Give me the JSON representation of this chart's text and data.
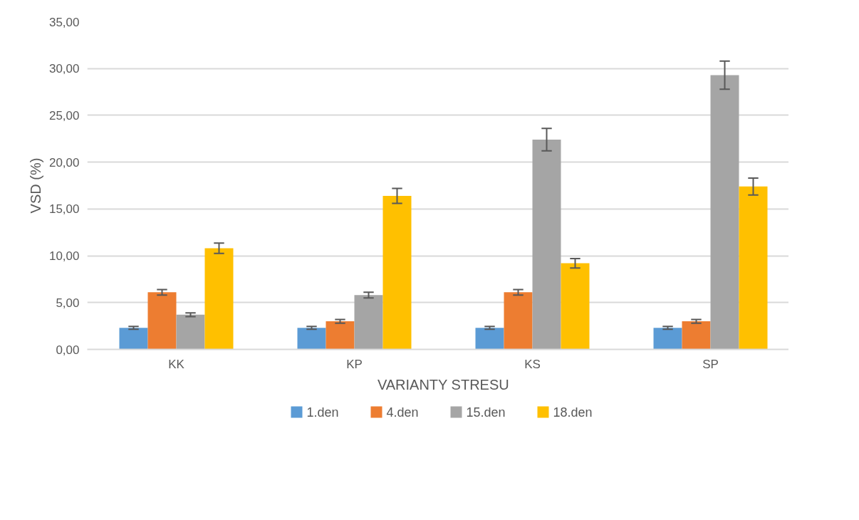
{
  "chart_data": {
    "type": "bar",
    "xlabel": "VARIANTY STRESU",
    "ylabel": "VSD (%)",
    "categories": [
      "KK",
      "KP",
      "KS",
      "SP"
    ],
    "series": [
      {
        "name": "1.den",
        "color": "#5b9bd5",
        "values": [
          2.3,
          2.3,
          2.3,
          2.3
        ],
        "errors": [
          0.15,
          0.15,
          0.15,
          0.15
        ]
      },
      {
        "name": "4.den",
        "color": "#ed7d31",
        "values": [
          6.1,
          3.0,
          6.1,
          3.0
        ],
        "errors": [
          0.3,
          0.2,
          0.3,
          0.2
        ]
      },
      {
        "name": "15.den",
        "color": "#a5a5a5",
        "values": [
          3.7,
          5.8,
          22.4,
          29.3
        ],
        "errors": [
          0.2,
          0.3,
          1.2,
          1.5
        ]
      },
      {
        "name": "18.den",
        "color": "#ffc000",
        "values": [
          10.8,
          16.4,
          9.2,
          17.4
        ],
        "errors": [
          0.55,
          0.8,
          0.5,
          0.9
        ]
      }
    ],
    "ylim": [
      0,
      35
    ],
    "yticks": [
      {
        "value": 0,
        "label": "0,00"
      },
      {
        "value": 5,
        "label": "5,00"
      },
      {
        "value": 10,
        "label": "10,00"
      },
      {
        "value": 15,
        "label": "15,00"
      },
      {
        "value": 20,
        "label": "20,00"
      },
      {
        "value": 25,
        "label": "25,00"
      },
      {
        "value": 30,
        "label": "30,00"
      },
      {
        "value": 35,
        "label": "35,00"
      }
    ],
    "grid": "y",
    "legend": "bottom"
  }
}
